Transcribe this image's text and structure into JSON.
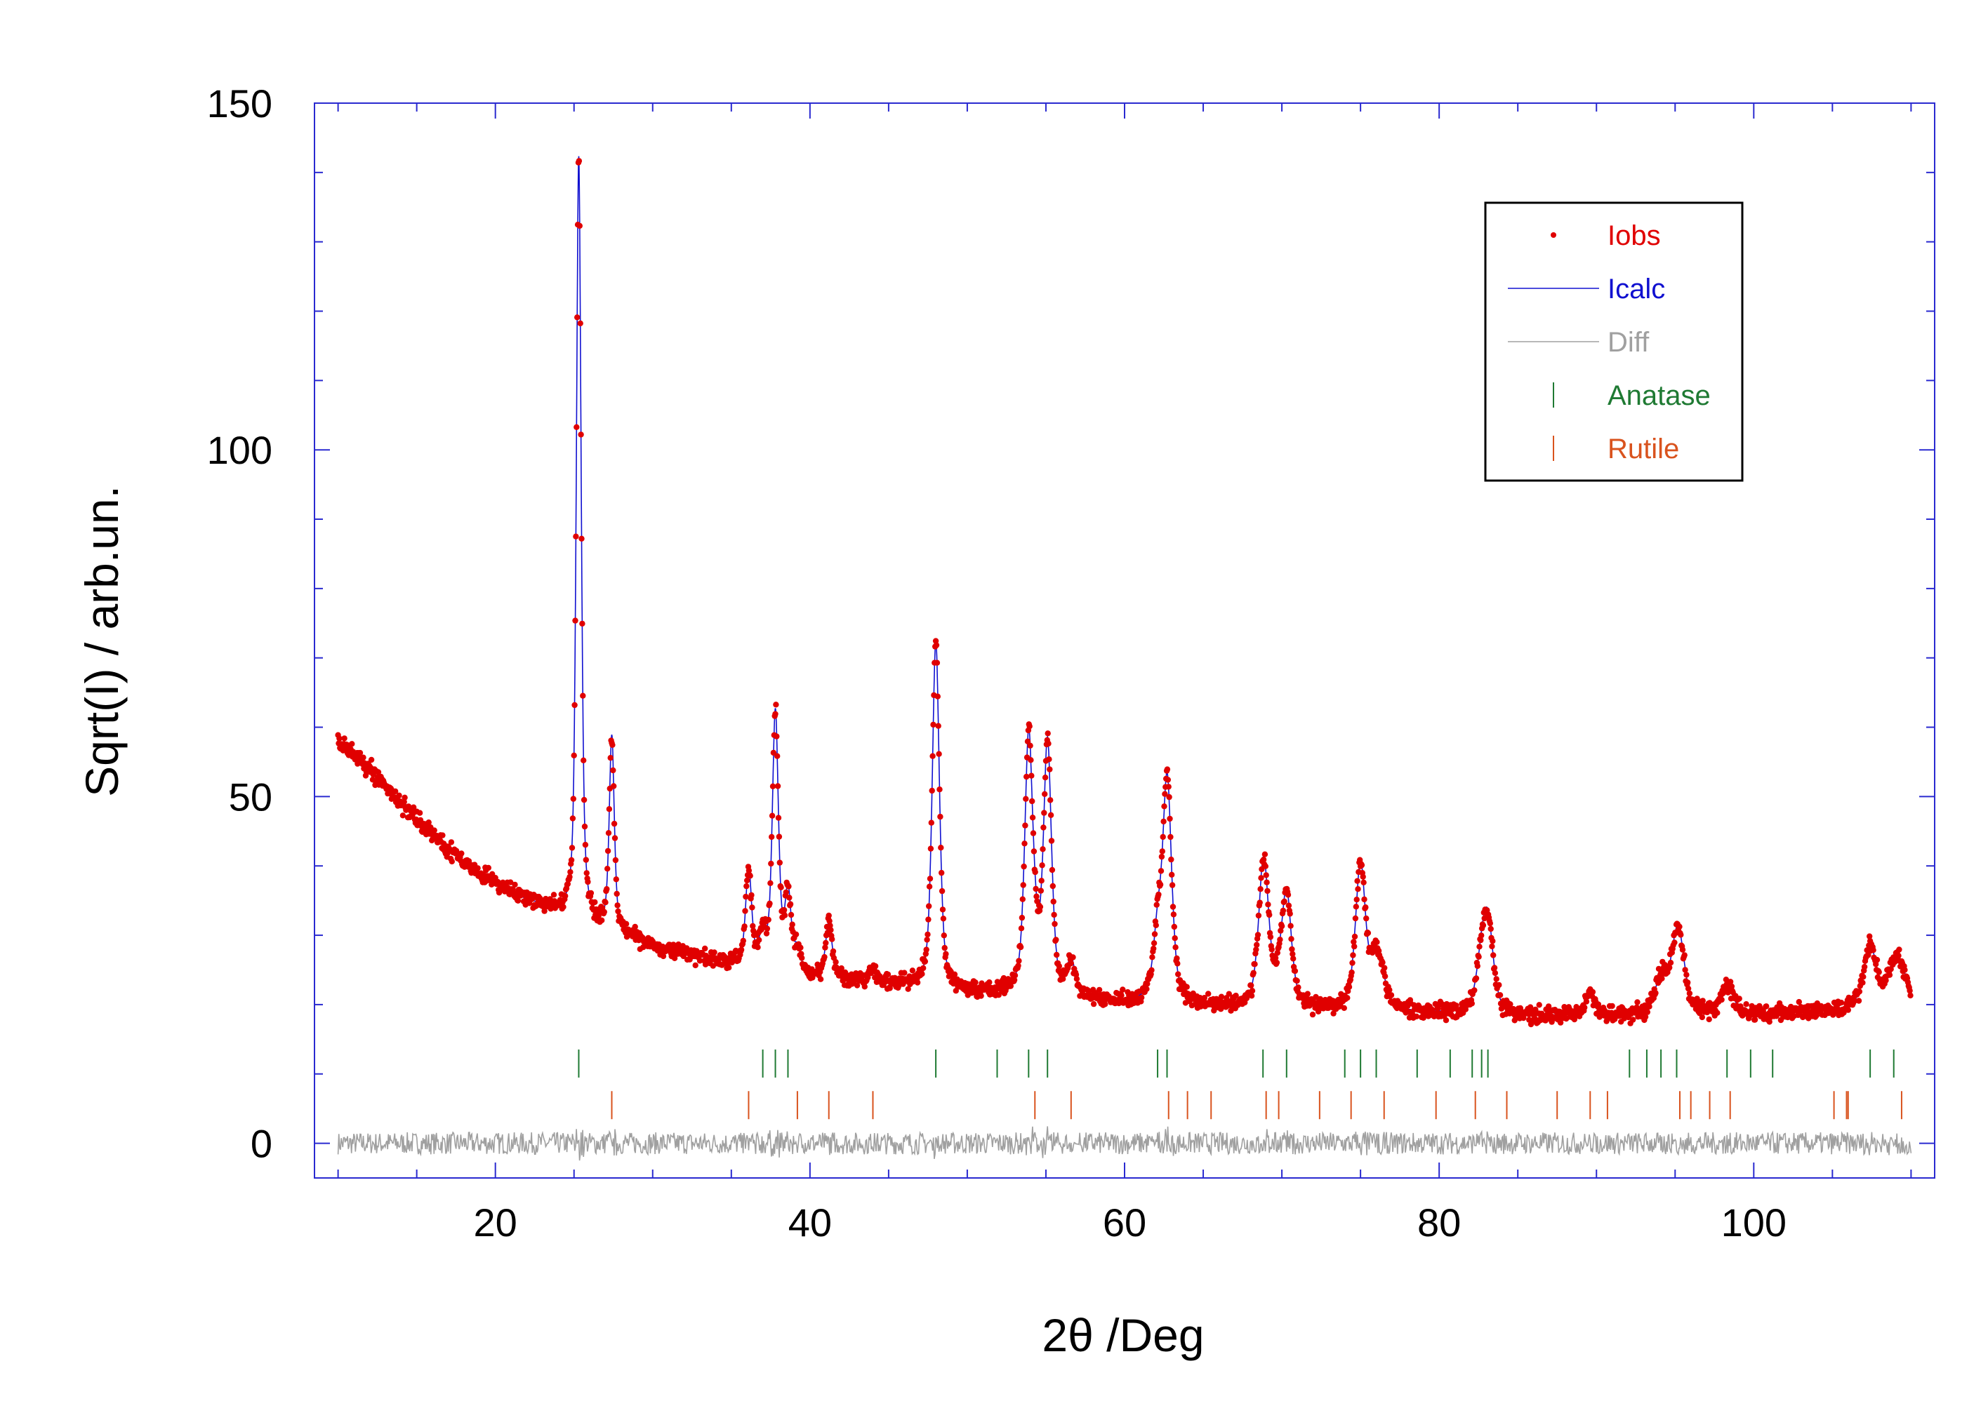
{
  "chart_data": {
    "type": "scatter",
    "title": "",
    "xlabel": "2θ /Deg",
    "ylabel": "Sqrt(I) / arb.un.",
    "xlim": [
      8.5,
      111.5
    ],
    "ylim": [
      -5,
      150
    ],
    "x_ticks": [
      20,
      40,
      60,
      80,
      100
    ],
    "x_tick_labels": [
      "20",
      "40",
      "60",
      "80",
      "100"
    ],
    "y_ticks": [
      0,
      50,
      100,
      150
    ],
    "y_tick_labels": [
      "0",
      "50",
      "100",
      "150"
    ],
    "legend_position": "top-right",
    "legend": [
      {
        "label": "Iobs",
        "color": "#e00000",
        "marker": "dot"
      },
      {
        "label": "Icalc",
        "color": "#1010d0",
        "marker": "line"
      },
      {
        "label": "Diff",
        "color": "#a0a0a0",
        "marker": "line"
      },
      {
        "label": "Anatase",
        "color": "#1f7a33",
        "marker": "tick"
      },
      {
        "label": "Rutile",
        "color": "#d9531e",
        "marker": "tick"
      }
    ],
    "background": {
      "x": [
        10,
        12,
        14,
        16,
        18,
        20,
        22,
        24,
        26,
        28,
        30,
        32,
        35,
        40,
        45,
        50,
        55,
        60,
        65,
        70,
        75,
        80,
        85,
        90,
        95,
        100,
        105,
        110
      ],
      "y": [
        58,
        54,
        49,
        44.5,
        40.5,
        37.5,
        35,
        33.5,
        31.5,
        30,
        28.5,
        27.2,
        25.8,
        24,
        22.8,
        21.8,
        21,
        20.3,
        19.8,
        19.4,
        19,
        18.7,
        18.4,
        18.2,
        18.3,
        18.6,
        18.9,
        19.2
      ]
    },
    "series": [
      {
        "name": "Anatase",
        "positions": [
          25.3,
          37.0,
          37.8,
          38.6,
          48.0,
          51.9,
          53.9,
          55.1,
          62.1,
          62.7,
          68.8,
          70.3,
          74.0,
          75.0,
          76.0,
          78.6,
          80.7,
          82.1,
          82.7,
          83.1,
          92.1,
          93.2,
          94.1,
          95.1,
          98.3,
          99.8,
          101.2,
          107.4,
          108.9
        ],
        "peak_heights": [
          110,
          5,
          37,
          11,
          50,
          0,
          36,
          36,
          9,
          29,
          17,
          16,
          0,
          21,
          7,
          0,
          0,
          0,
          6,
          12,
          0,
          0,
          5,
          8,
          4,
          0,
          0,
          9,
          5
        ]
      },
      {
        "name": "Rutile",
        "positions": [
          27.4,
          36.1,
          39.2,
          41.2,
          44.0,
          54.3,
          56.6,
          62.8,
          64.0,
          65.5,
          69.0,
          69.8,
          72.4,
          74.4,
          76.5,
          79.8,
          82.3,
          84.3,
          87.5,
          89.6,
          90.7,
          95.3,
          96.0,
          97.2,
          98.5,
          105.1,
          105.9,
          106.0,
          109.4
        ],
        "peak_heights": [
          28,
          14,
          3,
          8,
          2,
          4,
          5,
          3,
          0,
          0,
          5,
          2,
          0,
          0,
          2,
          0,
          0,
          0,
          0,
          3,
          0,
          5,
          0,
          0,
          0,
          0,
          0,
          0,
          4
        ]
      }
    ],
    "notable_points": [
      {
        "x": 25.3,
        "y": 142
      },
      {
        "x": 27.4,
        "y": 57.5
      },
      {
        "x": 37.8,
        "y": 63
      },
      {
        "x": 48.0,
        "y": 72
      },
      {
        "x": 53.9,
        "y": 57
      },
      {
        "x": 55.1,
        "y": 56.5
      },
      {
        "x": 62.7,
        "y": 49
      },
      {
        "x": 75.1,
        "y": 40
      },
      {
        "x": 82.9,
        "y": 32
      },
      {
        "x": 107.4,
        "y": 26.5
      }
    ],
    "anatase_tick_y": 11.5,
    "rutile_tick_y": 5.5,
    "diff_baseline_y": 0
  }
}
